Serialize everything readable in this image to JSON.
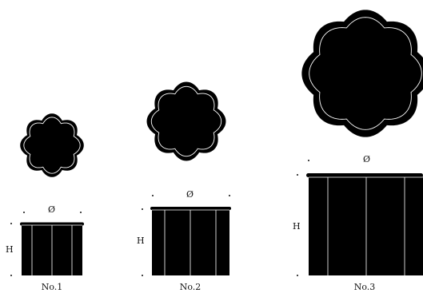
{
  "diameter_symbol": "Ø",
  "height_symbol": "H",
  "items": [
    {
      "name": "No.1"
    },
    {
      "name": "No.2"
    },
    {
      "name": "No.3"
    }
  ]
}
